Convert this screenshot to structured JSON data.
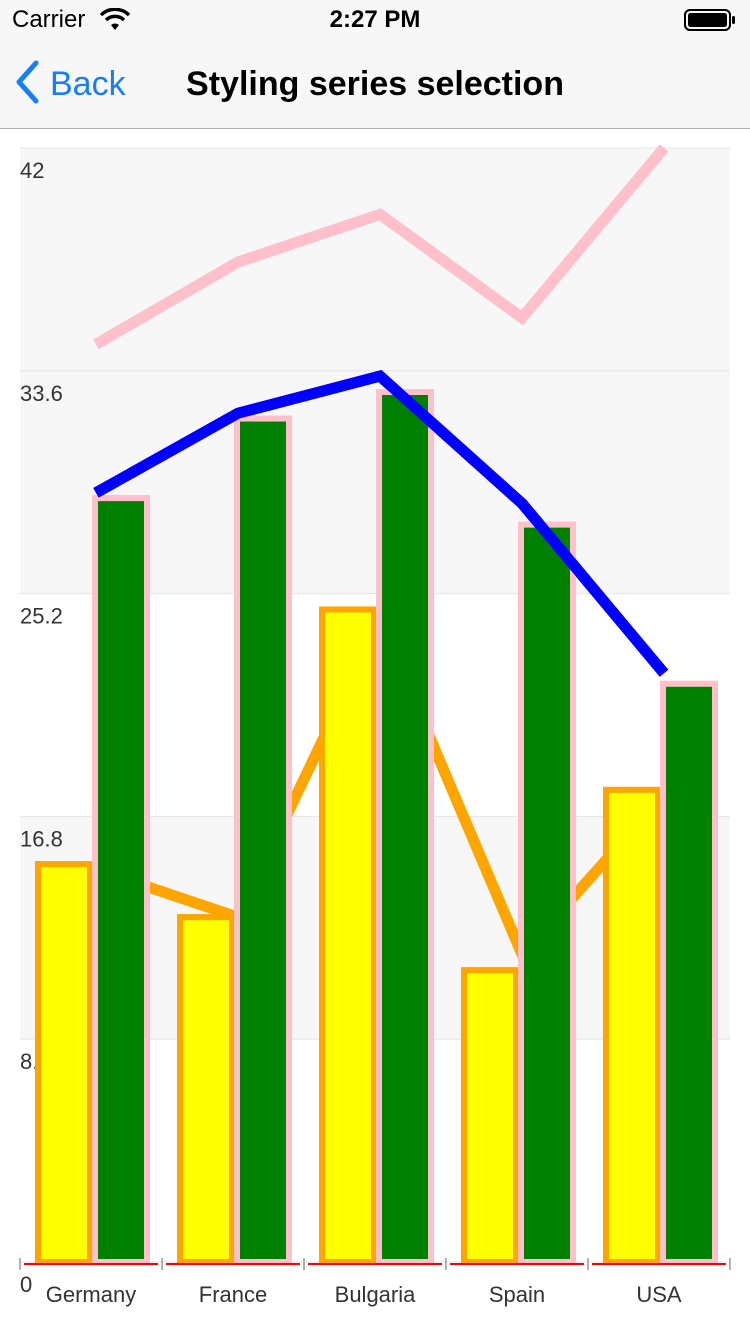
{
  "status_bar": {
    "carrier": "Carrier",
    "time": "2:27 PM",
    "icons": [
      "wifi-icon",
      "battery-icon"
    ]
  },
  "nav": {
    "back_label": "Back",
    "title": "Styling series selection",
    "back_icon": "chevron-left-icon"
  },
  "colors": {
    "nav_tint": "#147efb",
    "band": "#f7f7f7",
    "axis_line": "#ff0000"
  },
  "chart_data": {
    "type": "bar",
    "categories": [
      "Germany",
      "France",
      "Bulgaria",
      "Spain",
      "USA"
    ],
    "yticks": [
      "0",
      "8.4",
      "16.8",
      "25.2",
      "33.6",
      "42"
    ],
    "ylim": [
      0,
      42
    ],
    "grid": true,
    "series": [
      {
        "type": "bar",
        "values": [
          15,
          13,
          24.6,
          11,
          17.8
        ],
        "fill": "#ffff00",
        "stroke": "#ffa500"
      },
      {
        "type": "bar",
        "values": [
          28.8,
          31.8,
          32.8,
          27.8,
          21.8
        ],
        "fill": "#008000",
        "stroke": "#ffc0cb"
      },
      {
        "type": "line",
        "values": [
          14.8,
          13,
          24.2,
          11.6,
          17.6
        ],
        "color": "#ffa500"
      },
      {
        "type": "line",
        "values": [
          29,
          32,
          33.4,
          28.6,
          22.2
        ],
        "color": "#0000ff"
      },
      {
        "type": "line",
        "values": [
          34.6,
          37.7,
          39.5,
          35.6,
          42
        ],
        "color": "#ffc0cb"
      }
    ]
  }
}
